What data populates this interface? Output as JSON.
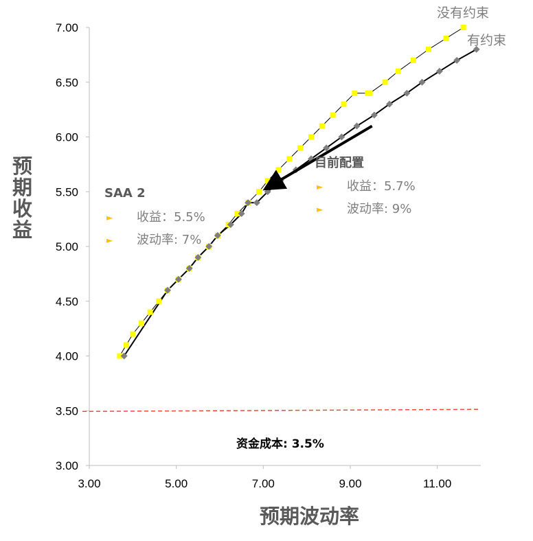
{
  "chart_data": {
    "type": "scatter",
    "xlabel": "预期波动率",
    "ylabel": "预期收益",
    "xlim": [
      3,
      12
    ],
    "ylim": [
      3,
      7
    ],
    "xticks": [
      "3.00",
      "5.00",
      "7.00",
      "9.00",
      "11.00"
    ],
    "yticks": [
      "3.00",
      "3.50",
      "4.00",
      "4.50",
      "5.00",
      "5.50",
      "6.00",
      "6.50",
      "7.00"
    ],
    "grid": false,
    "series": [
      {
        "name": "没有约束",
        "color": "#ffff00",
        "marker": "square",
        "points": [
          [
            3.7,
            4.0
          ],
          [
            3.85,
            4.1
          ],
          [
            4.0,
            4.2
          ],
          [
            4.2,
            4.3
          ],
          [
            4.4,
            4.4
          ],
          [
            4.6,
            4.5
          ],
          [
            4.8,
            4.6
          ],
          [
            5.05,
            4.7
          ],
          [
            5.3,
            4.8
          ],
          [
            5.5,
            4.9
          ],
          [
            5.75,
            5.0
          ],
          [
            5.95,
            5.1
          ],
          [
            6.2,
            5.2
          ],
          [
            6.4,
            5.3
          ],
          [
            6.65,
            5.4
          ],
          [
            6.9,
            5.5
          ],
          [
            7.1,
            5.6
          ],
          [
            7.35,
            5.7
          ],
          [
            7.6,
            5.8
          ],
          [
            7.85,
            5.9
          ],
          [
            8.1,
            6.0
          ],
          [
            8.35,
            6.1
          ],
          [
            8.6,
            6.2
          ],
          [
            8.85,
            6.3
          ],
          [
            9.1,
            6.4
          ],
          [
            9.45,
            6.4
          ],
          [
            9.4,
            6.4
          ],
          [
            9.45,
            6.4
          ],
          [
            9.8,
            6.5
          ],
          [
            10.1,
            6.6
          ],
          [
            10.45,
            6.7
          ],
          [
            10.8,
            6.8
          ],
          [
            11.2,
            6.9
          ],
          [
            11.6,
            7.0
          ]
        ]
      },
      {
        "name": "有约束",
        "color": "#7f7f7f",
        "marker": "diamond",
        "points": [
          [
            3.8,
            4.0
          ],
          [
            4.8,
            4.6
          ],
          [
            5.05,
            4.7
          ],
          [
            5.3,
            4.8
          ],
          [
            5.5,
            4.9
          ],
          [
            5.75,
            5.0
          ],
          [
            5.95,
            5.1
          ],
          [
            6.25,
            5.2
          ],
          [
            6.5,
            5.3
          ],
          [
            6.65,
            5.4
          ],
          [
            6.85,
            5.4
          ],
          [
            7.1,
            5.5
          ],
          [
            7.4,
            5.6
          ],
          [
            7.75,
            5.7
          ],
          [
            8.1,
            5.8
          ],
          [
            8.45,
            5.9
          ],
          [
            8.8,
            6.0
          ],
          [
            9.15,
            6.1
          ],
          [
            9.55,
            6.2
          ],
          [
            9.9,
            6.3
          ],
          [
            10.3,
            6.4
          ],
          [
            10.65,
            6.5
          ],
          [
            11.05,
            6.6
          ],
          [
            11.45,
            6.7
          ],
          [
            11.9,
            6.8
          ]
        ]
      }
    ],
    "reference_line": {
      "label": "资金成本: 3.5%",
      "y": 3.5,
      "color": "#e84c3d"
    },
    "annotations": [
      {
        "title": "SAA 2",
        "items": [
          "收益：5.5%",
          "波动率: 7%"
        ]
      },
      {
        "title": "目前配置",
        "items": [
          "收益：5.7%",
          "波动率: 9%"
        ]
      }
    ],
    "arrow": {
      "from": [
        9.5,
        6.1
      ],
      "to": [
        7.15,
        5.55
      ]
    },
    "legend": "series names at line ends, top-right"
  }
}
